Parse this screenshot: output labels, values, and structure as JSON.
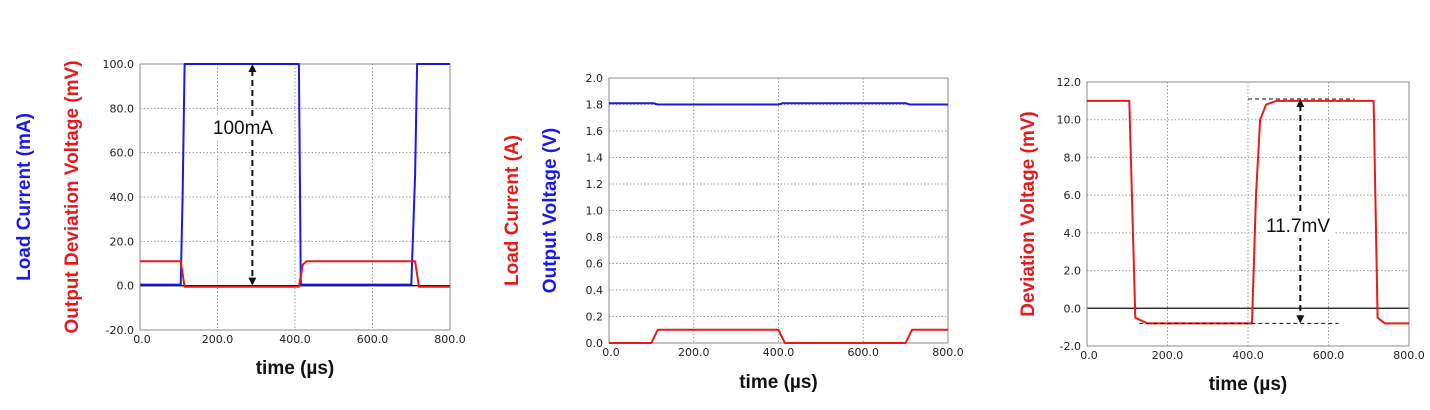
{
  "chart_data": [
    {
      "type": "line",
      "xlabel": "time (µs)",
      "ylabels": [
        {
          "text": "Load Current  (mA)",
          "color": "#1a1ae6"
        },
        {
          "text": "Output Deviation Voltage  (mV)",
          "color": "#e61a1a"
        }
      ],
      "xlim": [
        0,
        800
      ],
      "ylim": [
        -20,
        100
      ],
      "x_ticks": [
        "0.0",
        "200.0",
        "400.0",
        "600.0",
        "800.0"
      ],
      "y_ticks": [
        "-20.0",
        "0.0",
        "20.0",
        "40.0",
        "60.0",
        "80.0",
        "100.0"
      ],
      "y_tick_values": [
        -20,
        0,
        20,
        40,
        60,
        80,
        100
      ],
      "grid": true,
      "series": [
        {
          "color": "#1a1ae6",
          "x": [
            0,
            105,
            110,
            115,
            120,
            380,
            410,
            415,
            700,
            710,
            715,
            800
          ],
          "y": [
            0.5,
            0.5,
            40,
            100,
            100,
            100,
            100,
            0.5,
            0.5,
            50,
            100,
            100
          ]
        },
        {
          "color": "#e61a1a",
          "x": [
            0,
            105,
            115,
            300,
            410,
            420,
            430,
            700,
            710,
            720,
            800
          ],
          "y": [
            11,
            11,
            -0.5,
            -0.5,
            -0.5,
            9.5,
            11,
            11,
            11,
            -0.5,
            -0.5
          ]
        }
      ],
      "annotations": [
        {
          "text": "100mA",
          "x": 290,
          "y_from": 0,
          "y_to": 100
        }
      ]
    },
    {
      "type": "line",
      "xlabel": "time (µs)",
      "ylabels": [
        {
          "text": "Load Current  (A)",
          "color": "#e61a1a"
        },
        {
          "text": "Output Voltage  (V)",
          "color": "#1a1ae6"
        }
      ],
      "xlim": [
        0,
        800
      ],
      "ylim": [
        0,
        2.0
      ],
      "x_ticks": [
        "0.0",
        "200.0",
        "400.0",
        "600.0",
        "800.0"
      ],
      "y_ticks": [
        "0.0",
        "0.2",
        "0.4",
        "0.6",
        "0.8",
        "1.0",
        "1.2",
        "1.4",
        "1.6",
        "1.8",
        "2.0"
      ],
      "y_tick_values": [
        0,
        0.2,
        0.4,
        0.6,
        0.8,
        1.0,
        1.2,
        1.4,
        1.6,
        1.8,
        2.0
      ],
      "grid": true,
      "series": [
        {
          "color": "#1a1ae6",
          "x": [
            0,
            105,
            115,
            400,
            410,
            700,
            710,
            800
          ],
          "y": [
            1.81,
            1.81,
            1.8,
            1.8,
            1.81,
            1.81,
            1.8,
            1.8
          ]
        },
        {
          "color": "#e61a1a",
          "x": [
            0,
            100,
            115,
            400,
            415,
            700,
            715,
            800
          ],
          "y": [
            0,
            0,
            0.1,
            0.1,
            0,
            0,
            0.1,
            0.1
          ]
        }
      ],
      "annotations": []
    },
    {
      "type": "line",
      "xlabel": "time (µs)",
      "ylabels": [
        {
          "text": "Deviation Voltage  (mV)",
          "color": "#e61a1a"
        }
      ],
      "xlim": [
        0,
        800
      ],
      "ylim": [
        -2.0,
        12.0
      ],
      "x_ticks": [
        "0.0",
        "200.0",
        "400.0",
        "600.0",
        "800.0"
      ],
      "y_ticks": [
        "-2.0",
        "0.0",
        "2.0",
        "4.0",
        "6.0",
        "8.0",
        "10.0",
        "12.0"
      ],
      "y_tick_values": [
        -2,
        0,
        2,
        4,
        6,
        8,
        10,
        12
      ],
      "grid": true,
      "series": [
        {
          "color": "#e61a1a",
          "x": [
            0,
            105,
            120,
            130,
            150,
            410,
            420,
            430,
            445,
            470,
            700,
            712,
            722,
            740,
            800
          ],
          "y": [
            11,
            11,
            -0.5,
            -0.6,
            -0.8,
            -0.8,
            6,
            10,
            10.8,
            11,
            11,
            11,
            -0.5,
            -0.8,
            -0.8
          ]
        }
      ],
      "annotations": [
        {
          "text": "11.7mV",
          "x": 530,
          "y_from": -0.8,
          "y_to": 11.1
        }
      ]
    }
  ]
}
